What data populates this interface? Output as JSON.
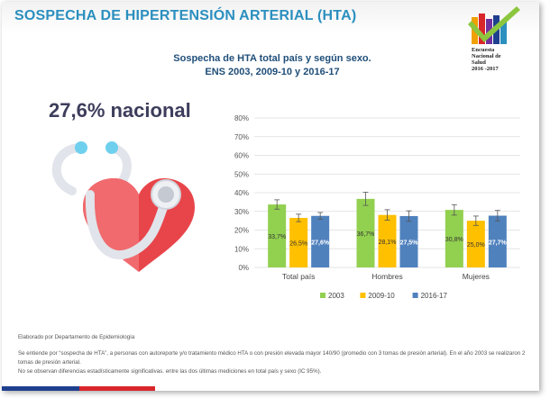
{
  "header": {
    "title": "SOSPECHA DE HIPERTENSIÓN ARTERIAL (HTA)"
  },
  "logo": {
    "lines": [
      "Encuesta",
      "Nacional de",
      "Salud",
      "2016 -2017"
    ]
  },
  "kpi": {
    "value": "27,6% nacional"
  },
  "illustration_icon": "heart-stethoscope-icon",
  "chart_data": {
    "type": "bar",
    "title": "Sospecha de HTA total país y según sexo.",
    "subtitle": "ENS 2003, 2009-10 y 2016-17",
    "categories": [
      "Total país",
      "Hombres",
      "Mujeres"
    ],
    "series": [
      {
        "name": "2003",
        "color": "#92d050",
        "values": [
          33.7,
          36.7,
          30.8
        ],
        "labels": [
          "33,7%",
          "36,7%",
          "30,8%"
        ],
        "err": [
          2.5,
          3.5,
          2.8
        ]
      },
      {
        "name": "2009-10",
        "color": "#ffc000",
        "values": [
          26.5,
          28.1,
          25.0
        ],
        "labels": [
          "26,5%",
          "28,1%",
          "25,0%"
        ],
        "err": [
          2.0,
          2.8,
          2.5
        ]
      },
      {
        "name": "2016-17",
        "color": "#4f81bd",
        "values": [
          27.6,
          27.5,
          27.7
        ],
        "labels": [
          "27,6%",
          "27,5%",
          "27,7%"
        ],
        "err": [
          1.8,
          2.8,
          2.8
        ]
      }
    ],
    "yticks": [
      "0%",
      "10%",
      "20%",
      "30%",
      "40%",
      "50%",
      "60%",
      "70%",
      "80%"
    ],
    "ylim": [
      0,
      80
    ],
    "grid": true,
    "legend": "bottom",
    "xlabel": "",
    "ylabel": ""
  },
  "footer": {
    "source": "Elaborado por Departamento de Epidemiología",
    "note1": "Se entiende por “sospecha de HTA”, a personas con autoreporte y/o tratamiento médico HTA o con presión elevada mayor 140/90 (promedio con 3 tomas de presión arterial). En el año 2003 se realizaron 2 tomas de presión arterial.",
    "note2": "No se observan diferencias estadísticamente significativas. entre las dos últimas mediciones en total país y sexo (IC 95%)."
  }
}
